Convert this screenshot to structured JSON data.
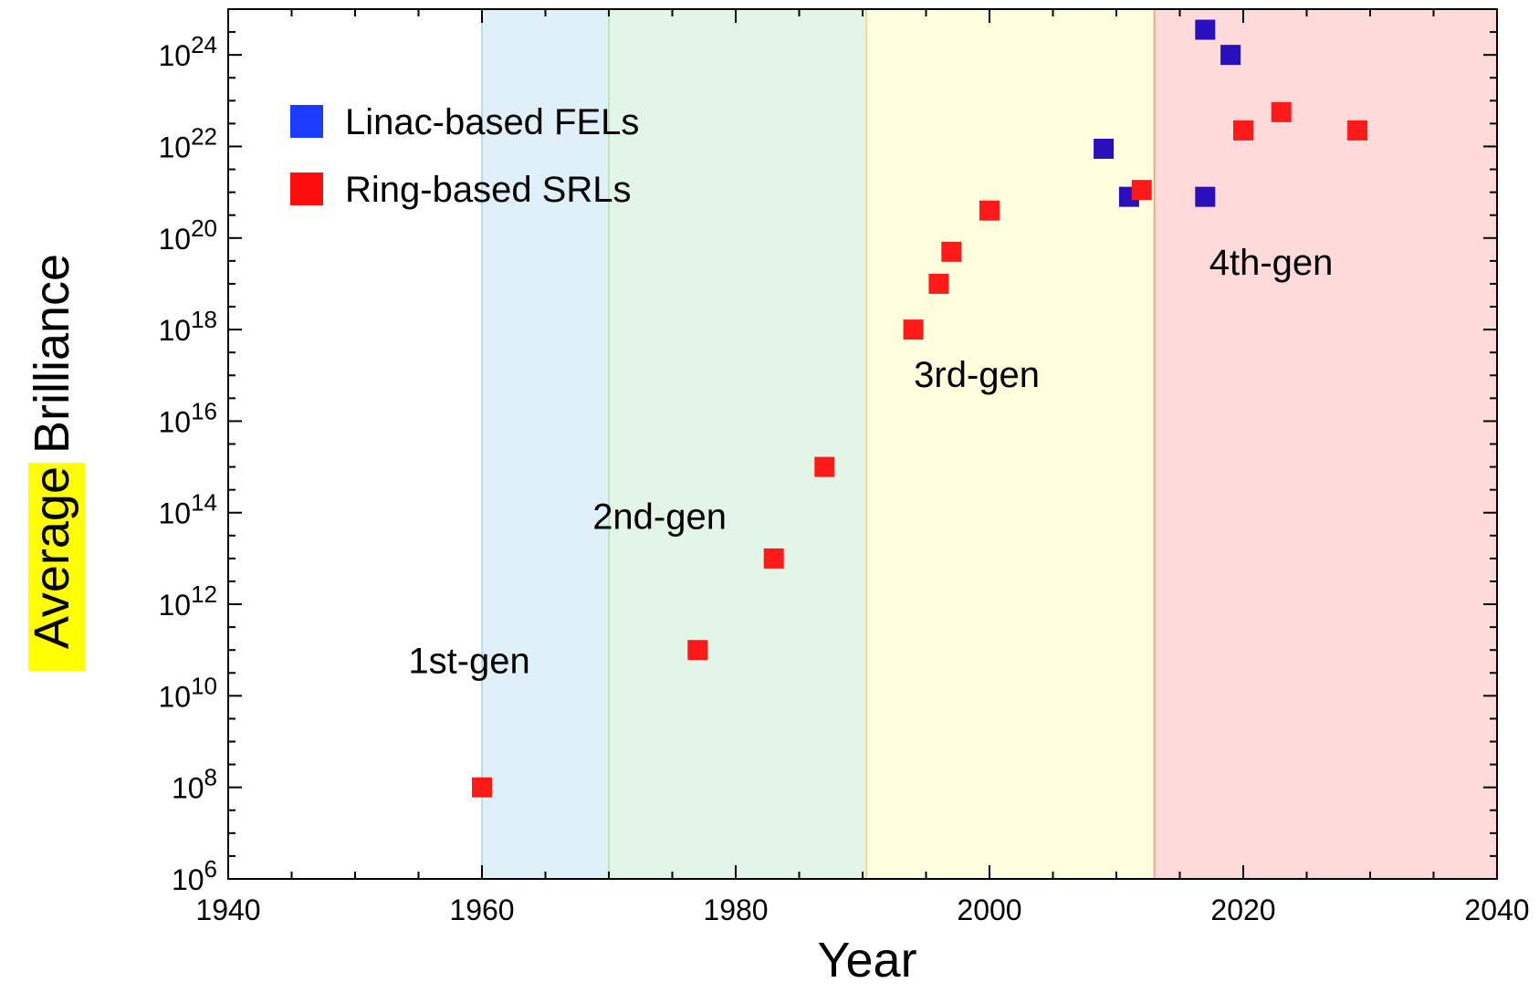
{
  "chart_data": {
    "type": "scatter",
    "xlabel": "Year",
    "ylabel_highlight": "Average",
    "ylabel_rest": "Brilliance",
    "ylabel_highlight_color": "#ffff00",
    "xlim": [
      1940,
      2040
    ],
    "ylim_log10": [
      6,
      25
    ],
    "y_scale": "log",
    "x_ticks": [
      1940,
      1960,
      1980,
      2000,
      2020,
      2040
    ],
    "y_ticks": [
      {
        "base": "10",
        "exp": "6",
        "log10": 6
      },
      {
        "base": "10",
        "exp": "8",
        "log10": 8
      },
      {
        "base": "10",
        "exp": "10",
        "log10": 10
      },
      {
        "base": "10",
        "exp": "12",
        "log10": 12
      },
      {
        "base": "10",
        "exp": "14",
        "log10": 14
      },
      {
        "base": "10",
        "exp": "16",
        "log10": 16
      },
      {
        "base": "10",
        "exp": "18",
        "log10": 18
      },
      {
        "base": "10",
        "exp": "20",
        "log10": 20
      },
      {
        "base": "10",
        "exp": "22",
        "log10": 22
      },
      {
        "base": "10",
        "exp": "24",
        "log10": 24
      }
    ],
    "regions": [
      {
        "label": "1st-gen",
        "x0": 1940,
        "x1": 1960,
        "color": "#ffffff",
        "label_x": 1959,
        "label_y_log10": 10.5
      },
      {
        "label": "",
        "x0": 1960,
        "x1": 1970,
        "color": "#e0f0f8",
        "label_x": null,
        "label_y_log10": null
      },
      {
        "label": "2nd-gen",
        "x0": 1970,
        "x1": 1990.3,
        "color": "#e3f5e6",
        "label_x": 1974,
        "label_y_log10": 13.65
      },
      {
        "label": "3rd-gen",
        "x0": 1990.3,
        "x1": 2013,
        "color": "#ffffdd",
        "label_x": 1999,
        "label_y_log10": 16.75
      },
      {
        "label": "4th-gen",
        "x0": 2013,
        "x1": 2040,
        "color": "#ffdada",
        "label_x": 2022.2,
        "label_y_log10": 19.2
      }
    ],
    "series": [
      {
        "name": "Linac-based FELs",
        "legend_color": "#1a3cff",
        "color": "#2a0fbe",
        "points": [
          {
            "x": 2009,
            "y_log10": 21.95
          },
          {
            "x": 2011,
            "y_log10": 20.9
          },
          {
            "x": 2017,
            "y_log10": 24.55
          },
          {
            "x": 2019,
            "y_log10": 24.0
          },
          {
            "x": 2017,
            "y_log10": 20.9
          }
        ]
      },
      {
        "name": "Ring-based SRLs",
        "legend_color": "#ff0d0d",
        "color": "#ff1a1a",
        "points": [
          {
            "x": 1960,
            "y_log10": 8.0
          },
          {
            "x": 1977,
            "y_log10": 11.0
          },
          {
            "x": 1983,
            "y_log10": 13.0
          },
          {
            "x": 1987,
            "y_log10": 15.0
          },
          {
            "x": 1994,
            "y_log10": 18.0
          },
          {
            "x": 1996,
            "y_log10": 19.0
          },
          {
            "x": 1997,
            "y_log10": 19.7
          },
          {
            "x": 2000,
            "y_log10": 20.6
          },
          {
            "x": 2012,
            "y_log10": 21.05
          },
          {
            "x": 2020,
            "y_log10": 22.35
          },
          {
            "x": 2023,
            "y_log10": 22.75
          },
          {
            "x": 2029,
            "y_log10": 22.35
          }
        ]
      }
    ],
    "legend_placement": "top-left"
  }
}
